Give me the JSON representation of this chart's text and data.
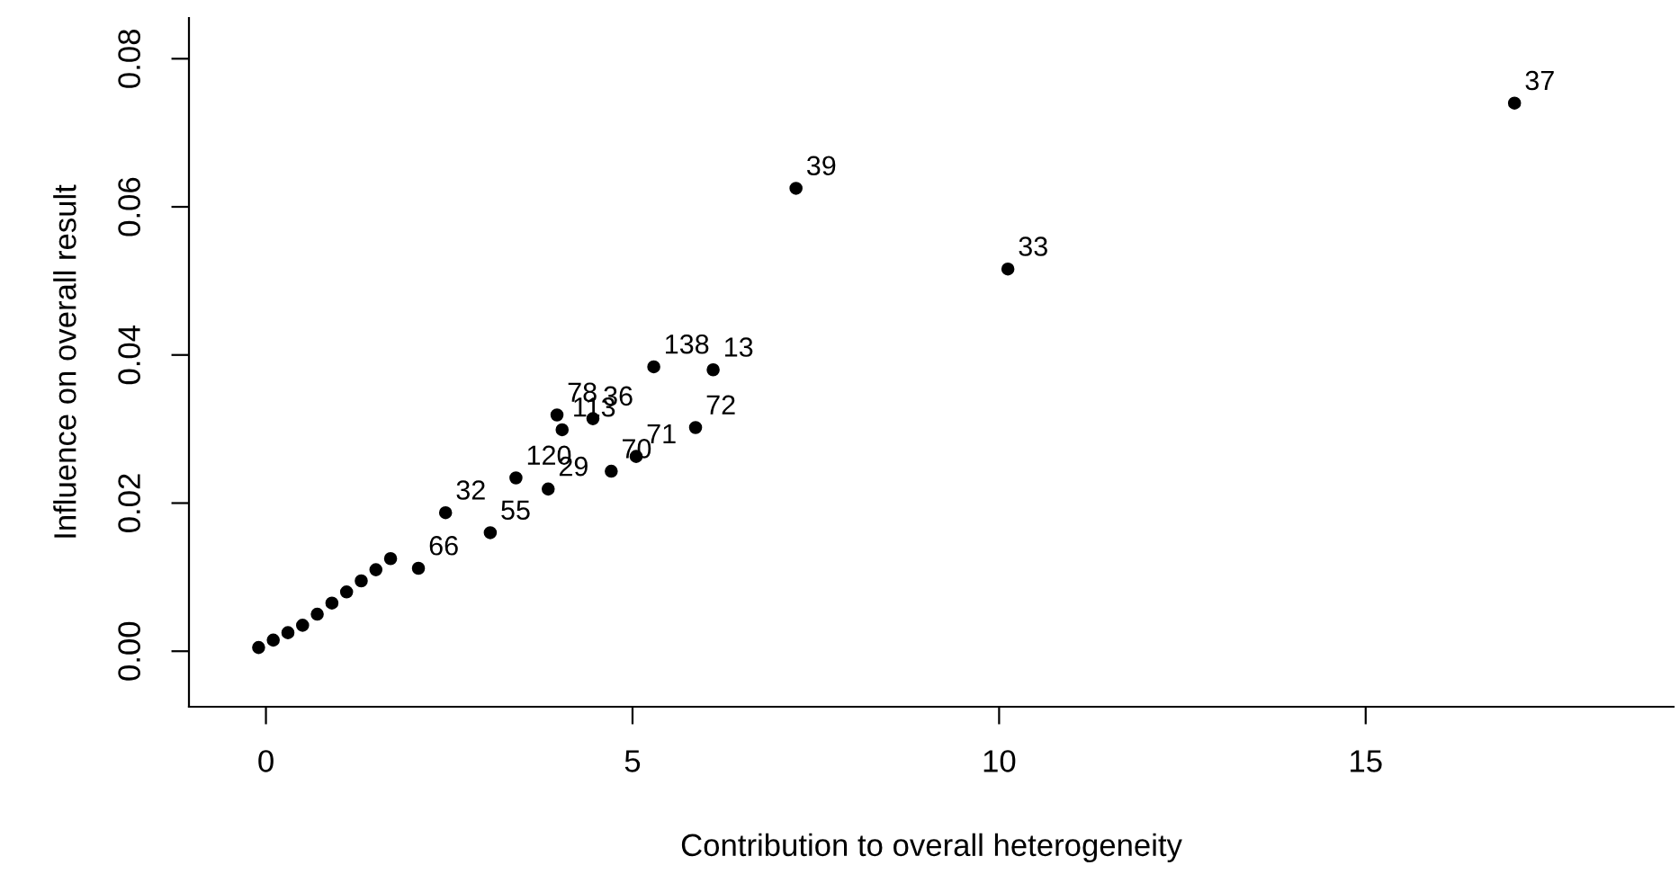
{
  "chart_data": {
    "type": "scatter",
    "xlabel": "Contribution to overall heterogeneity",
    "ylabel": "Influence on overall result",
    "xlim": [
      -1.05,
      19.2
    ],
    "ylim": [
      -0.0075,
      0.0855
    ],
    "xticks": [
      0,
      5,
      10,
      15
    ],
    "yticks": [
      {
        "value": 0,
        "label": "0.00"
      },
      {
        "value": 0.02,
        "label": "0.02"
      },
      {
        "value": 0.04,
        "label": "0.04"
      },
      {
        "value": 0.06,
        "label": "0.06"
      },
      {
        "value": 0.08,
        "label": "0.08"
      }
    ],
    "grid": false,
    "annotations": [
      {
        "text": "37",
        "x": 17.03,
        "y": 0.074
      },
      {
        "text": "39",
        "x": 7.23,
        "y": 0.0625
      },
      {
        "text": "33",
        "x": 10.12,
        "y": 0.0516
      },
      {
        "text": "138",
        "x": 5.29,
        "y": 0.0384
      },
      {
        "text": "13",
        "x": 6.1,
        "y": 0.038
      },
      {
        "text": "72",
        "x": 5.86,
        "y": 0.0302
      },
      {
        "text": "78",
        "x": 3.97,
        "y": 0.0319
      },
      {
        "text": "113",
        "x": 4.04,
        "y": 0.0299
      },
      {
        "text": "36",
        "x": 4.46,
        "y": 0.0314
      },
      {
        "text": "71",
        "x": 5.05,
        "y": 0.0263
      },
      {
        "text": "70",
        "x": 4.71,
        "y": 0.0243
      },
      {
        "text": "120",
        "x": 3.41,
        "y": 0.0234
      },
      {
        "text": "29",
        "x": 3.85,
        "y": 0.0219
      },
      {
        "text": "32",
        "x": 2.45,
        "y": 0.0187
      },
      {
        "text": "55",
        "x": 3.06,
        "y": 0.016
      },
      {
        "text": "66",
        "x": 2.08,
        "y": 0.0112
      }
    ],
    "series": [
      {
        "color": "#000000",
        "marker": "circle",
        "x": [
          17.03,
          7.23,
          10.12,
          5.29,
          6.1,
          5.86,
          3.97,
          4.04,
          4.46,
          5.05,
          4.71,
          3.41,
          3.85,
          2.45,
          3.06,
          2.08
        ],
        "values": [
          0.074,
          0.0625,
          0.0516,
          0.0384,
          0.038,
          0.0302,
          0.0319,
          0.0299,
          0.0314,
          0.0263,
          0.0243,
          0.0234,
          0.0219,
          0.0187,
          0.016,
          0.0112
        ]
      },
      {
        "color": "#000000",
        "marker": "circle",
        "x": [
          -0.1,
          0.1,
          0.3,
          0.5,
          0.7,
          0.9,
          1.1,
          1.3,
          1.5,
          1.7
        ],
        "values": [
          0.0005,
          0.0015,
          0.0025,
          0.0035,
          0.005,
          0.0065,
          0.008,
          0.0095,
          0.011,
          0.0125
        ]
      }
    ]
  }
}
